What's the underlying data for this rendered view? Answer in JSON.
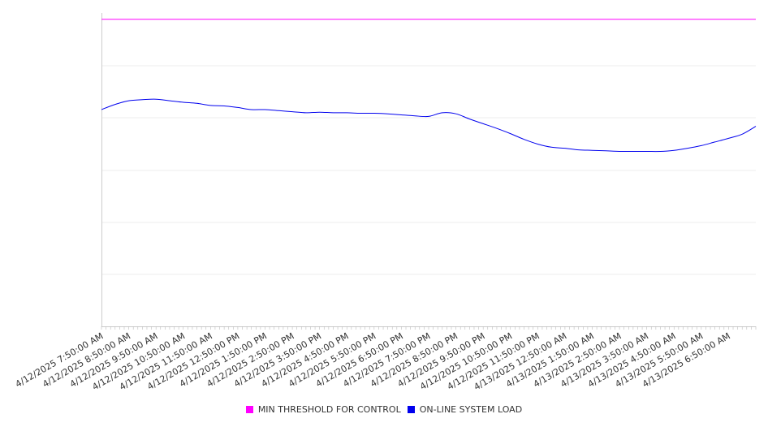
{
  "chart_data": {
    "type": "line",
    "title": "",
    "xlabel": "",
    "ylabel": "",
    "grid": true,
    "legend_position": "bottom",
    "x_start": "4/12/2025 7:50:00 AM",
    "x_end": "4/13/2025 7:50:00 AM",
    "x_tick_labels": [
      "4/12/2025 7:50:00 AM",
      "4/12/2025 8:50:00 AM",
      "4/12/2025 9:50:00 AM",
      "4/12/2025 10:50:00 AM",
      "4/12/2025 11:50:00 AM",
      "4/12/2025 12:50:00 PM",
      "4/12/2025 1:50:00 PM",
      "4/12/2025 2:50:00 PM",
      "4/12/2025 3:50:00 PM",
      "4/12/2025 4:50:00 PM",
      "4/12/2025 5:50:00 PM",
      "4/12/2025 6:50:00 PM",
      "4/12/2025 7:50:00 PM",
      "4/12/2025 8:50:00 PM",
      "4/12/2025 9:50:00 PM",
      "4/12/2025 10:50:00 PM",
      "4/12/2025 11:50:00 PM",
      "4/13/2025 12:50:00 AM",
      "4/13/2025 1:50:00 AM",
      "4/13/2025 2:50:00 AM",
      "4/13/2025 3:50:00 AM",
      "4/13/2025 4:50:00 AM",
      "4/13/2025 5:50:00 AM",
      "4/13/2025 6:50:00 AM"
    ],
    "ylim": [
      0,
      6
    ],
    "series": [
      {
        "name": "MIN THRESHOLD FOR CONTROL",
        "color": "#ff00ff",
        "x": [
          "4/12/2025 7:50:00 AM",
          "4/13/2025 7:50:00 AM"
        ],
        "values": [
          5.88,
          5.88
        ]
      },
      {
        "name": "ON-LINE SYSTEM LOAD",
        "color": "#0000ee",
        "x": [
          "4/12/2025 7:50:00 AM",
          "4/12/2025 8:20:00 AM",
          "4/12/2025 8:50:00 AM",
          "4/12/2025 9:20:00 AM",
          "4/12/2025 9:50:00 AM",
          "4/12/2025 10:20:00 AM",
          "4/12/2025 10:50:00 AM",
          "4/12/2025 11:20:00 AM",
          "4/12/2025 11:50:00 AM",
          "4/12/2025 12:20:00 PM",
          "4/12/2025 12:50:00 PM",
          "4/12/2025 1:20:00 PM",
          "4/12/2025 1:50:00 PM",
          "4/12/2025 2:20:00 PM",
          "4/12/2025 2:50:00 PM",
          "4/12/2025 3:20:00 PM",
          "4/12/2025 3:50:00 PM",
          "4/12/2025 4:20:00 PM",
          "4/12/2025 4:50:00 PM",
          "4/12/2025 5:20:00 PM",
          "4/12/2025 5:50:00 PM",
          "4/12/2025 6:20:00 PM",
          "4/12/2025 6:50:00 PM",
          "4/12/2025 7:20:00 PM",
          "4/12/2025 7:50:00 PM",
          "4/12/2025 8:20:00 PM",
          "4/12/2025 8:50:00 PM",
          "4/12/2025 9:20:00 PM",
          "4/12/2025 9:50:00 PM",
          "4/12/2025 10:20:00 PM",
          "4/12/2025 10:50:00 PM",
          "4/12/2025 11:20:00 PM",
          "4/12/2025 11:50:00 PM",
          "4/13/2025 12:20:00 AM",
          "4/13/2025 12:50:00 AM",
          "4/13/2025 1:20:00 AM",
          "4/13/2025 1:50:00 AM",
          "4/13/2025 2:20:00 AM",
          "4/13/2025 2:50:00 AM",
          "4/13/2025 3:20:00 AM",
          "4/13/2025 3:50:00 AM",
          "4/13/2025 4:20:00 AM",
          "4/13/2025 4:50:00 AM",
          "4/13/2025 5:20:00 AM",
          "4/13/2025 5:50:00 AM",
          "4/13/2025 6:20:00 AM",
          "4/13/2025 6:50:00 AM",
          "4/13/2025 7:20:00 AM",
          "4/13/2025 7:50:00 AM"
        ],
        "values": [
          4.15,
          4.25,
          4.32,
          4.34,
          4.35,
          4.32,
          4.29,
          4.27,
          4.23,
          4.22,
          4.19,
          4.15,
          4.15,
          4.13,
          4.11,
          4.09,
          4.1,
          4.09,
          4.09,
          4.08,
          4.08,
          4.07,
          4.05,
          4.03,
          4.02,
          4.09,
          4.07,
          3.97,
          3.88,
          3.79,
          3.69,
          3.58,
          3.49,
          3.43,
          3.41,
          3.38,
          3.37,
          3.36,
          3.35,
          3.35,
          3.35,
          3.35,
          3.37,
          3.41,
          3.46,
          3.53,
          3.6,
          3.68,
          3.83
        ]
      }
    ]
  }
}
